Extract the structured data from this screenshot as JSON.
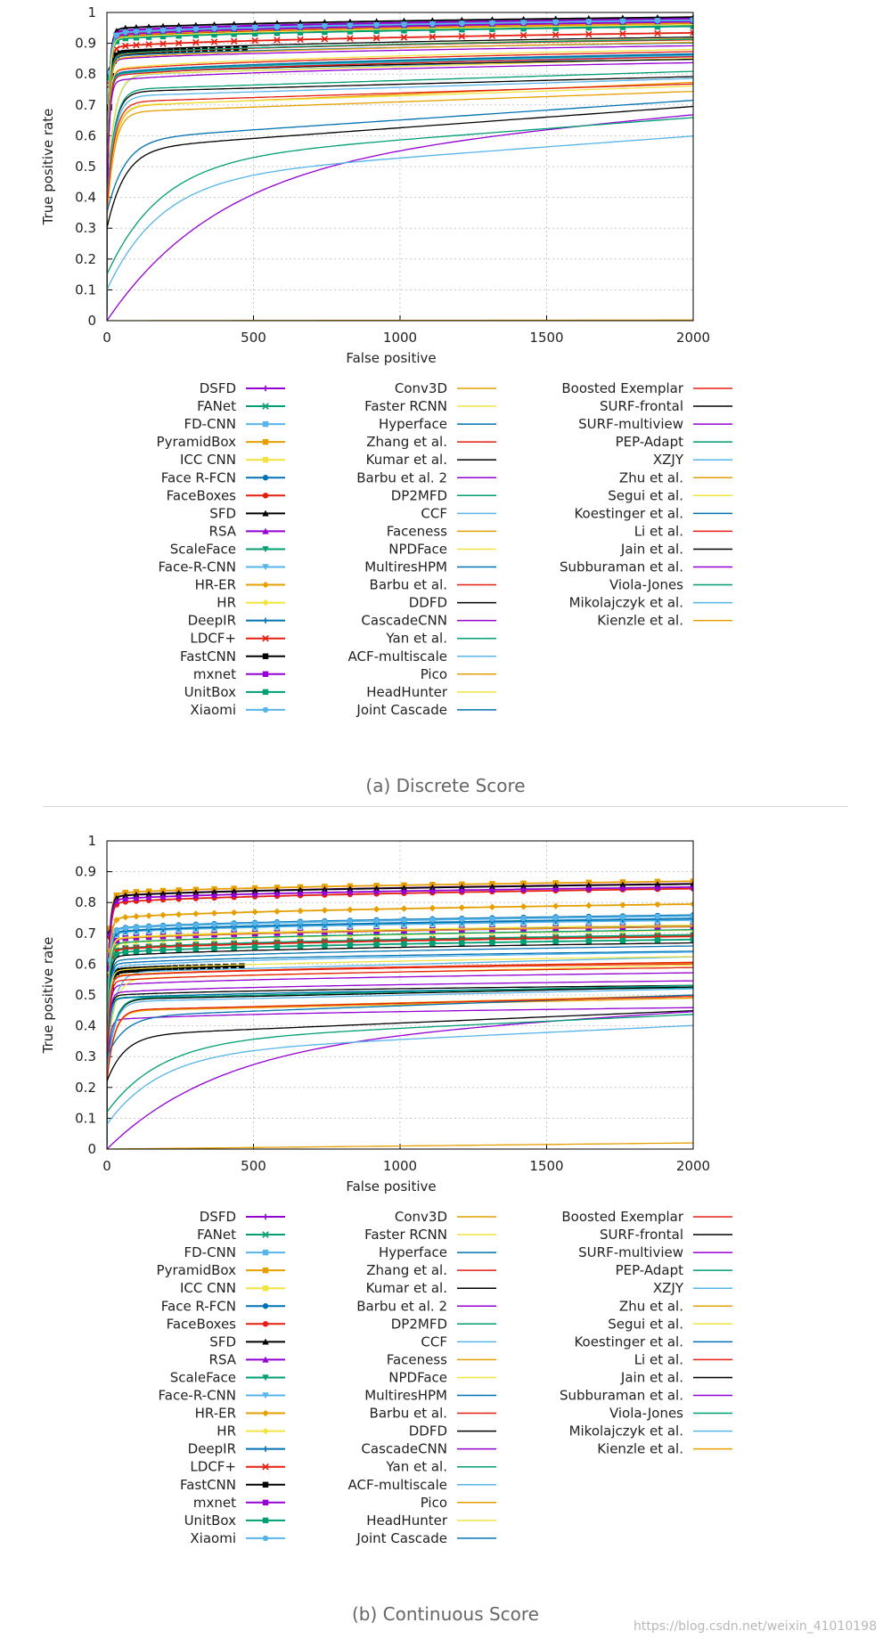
{
  "chart_data": [
    {
      "type": "line",
      "panel": "a",
      "caption": "(a) Discrete Score",
      "xlabel": "False positive",
      "ylabel": "True positive rate",
      "xlim": [
        0,
        2000
      ],
      "ylim": [
        0,
        1
      ],
      "xticks": [
        "0",
        "500",
        "1000",
        "1500",
        "2000"
      ],
      "yticks": [
        "0",
        "0.1",
        "0.2",
        "0.3",
        "0.4",
        "0.5",
        "0.6",
        "0.7",
        "0.8",
        "0.9",
        "1"
      ],
      "grid": true,
      "series": [
        {
          "name": "DSFD",
          "color": "#9400d3",
          "marker": "plus",
          "final": 0.98,
          "start": 0.88
        },
        {
          "name": "FANet",
          "color": "#009e73",
          "marker": "x",
          "final": 0.97,
          "start": 0.87
        },
        {
          "name": "FD-CNN",
          "color": "#56b4e9",
          "marker": "square",
          "final": 0.965,
          "start": 0.86
        },
        {
          "name": "PyramidBox",
          "color": "#e69f00",
          "marker": "square",
          "final": 0.972,
          "start": 0.87
        },
        {
          "name": "ICC CNN",
          "color": "#f0e442",
          "marker": "square",
          "final": 0.962,
          "start": 0.86
        },
        {
          "name": "Face R-FCN",
          "color": "#0072b2",
          "marker": "circle",
          "final": 0.975,
          "start": 0.87
        },
        {
          "name": "FaceBoxes",
          "color": "#e51e10",
          "marker": "circle",
          "final": 0.962,
          "start": 0.86
        },
        {
          "name": "SFD",
          "color": "#000000",
          "marker": "triangle",
          "final": 0.985,
          "start": 0.89
        },
        {
          "name": "RSA",
          "color": "#9400d3",
          "marker": "triangle",
          "final": 0.976,
          "start": 0.88
        },
        {
          "name": "ScaleFace",
          "color": "#009e73",
          "marker": "triangle-down",
          "final": 0.956,
          "start": 0.85
        },
        {
          "name": "Face-R-CNN",
          "color": "#56b4e9",
          "marker": "triangle-down",
          "final": 0.974,
          "start": 0.87
        },
        {
          "name": "HR-ER",
          "color": "#e69f00",
          "marker": "diamond",
          "final": 0.966,
          "start": 0.86
        },
        {
          "name": "HR",
          "color": "#f0e442",
          "marker": "diamond",
          "final": 0.972,
          "start": 0.86
        },
        {
          "name": "DeepIR",
          "color": "#0072b2",
          "marker": "plus",
          "final": 0.974,
          "start": 0.87
        },
        {
          "name": "LDCF+",
          "color": "#e51e10",
          "marker": "x",
          "final": 0.934,
          "start": 0.82
        },
        {
          "name": "FastCNN",
          "color": "#000000",
          "marker": "square",
          "final": 0.905,
          "start": 0.81,
          "x_end": 470
        },
        {
          "name": "mxnet",
          "color": "#9400d3",
          "marker": "square",
          "final": 0.97,
          "start": 0.86
        },
        {
          "name": "UnitBox",
          "color": "#009e73",
          "marker": "square",
          "final": 0.955,
          "start": 0.85
        },
        {
          "name": "Xiaomi",
          "color": "#56b4e9",
          "marker": "circle",
          "final": 0.975,
          "start": 0.87
        },
        {
          "name": "Conv3D",
          "color": "#e69f00",
          "marker": "none",
          "final": 0.915,
          "start": 0.78
        },
        {
          "name": "Faster RCNN",
          "color": "#f0e442",
          "marker": "none",
          "final": 0.961,
          "start": 0.85
        },
        {
          "name": "Hyperface",
          "color": "#0072b2",
          "marker": "none",
          "final": 0.901,
          "start": 0.79
        },
        {
          "name": "Zhang et al.",
          "color": "#e51e10",
          "marker": "none",
          "final": 0.911,
          "start": 0.79
        },
        {
          "name": "Kumar et al.",
          "color": "#000000",
          "marker": "none",
          "final": 0.92,
          "start": 0.8
        },
        {
          "name": "Barbu et al. 2",
          "color": "#9400d3",
          "marker": "none",
          "final": 0.892,
          "start": 0.78
        },
        {
          "name": "DP2MFD",
          "color": "#009e73",
          "marker": "none",
          "final": 0.913,
          "start": 0.79
        },
        {
          "name": "CCF",
          "color": "#56b4e9",
          "marker": "none",
          "final": 0.859,
          "start": 0.68,
          "shape": "medium"
        },
        {
          "name": "Faceness",
          "color": "#e69f00",
          "marker": "none",
          "final": 0.903,
          "start": 0.77
        },
        {
          "name": "NPDFace",
          "color": "#f0e442",
          "marker": "none",
          "final": 0.851,
          "start": 0.7,
          "shape": "medium"
        },
        {
          "name": "MultiresHPM",
          "color": "#0072b2",
          "marker": "none",
          "final": 0.864,
          "start": 0.7
        },
        {
          "name": "Barbu et al.",
          "color": "#e51e10",
          "marker": "none",
          "final": 0.873,
          "start": 0.72
        },
        {
          "name": "DDFD",
          "color": "#000000",
          "marker": "none",
          "final": 0.848,
          "start": 0.72
        },
        {
          "name": "CascadeCNN",
          "color": "#9400d3",
          "marker": "none",
          "final": 0.857,
          "start": 0.7
        },
        {
          "name": "Yan et al.",
          "color": "#009e73",
          "marker": "none",
          "final": 0.861,
          "start": 0.71
        },
        {
          "name": "ACF-multiscale",
          "color": "#56b4e9",
          "marker": "none",
          "final": 0.86,
          "start": 0.7
        },
        {
          "name": "Pico",
          "color": "#e69f00",
          "marker": "none",
          "final": 0.773,
          "start": 0.55,
          "shape": "medium"
        },
        {
          "name": "HeadHunter",
          "color": "#f0e442",
          "marker": "none",
          "final": 0.88,
          "start": 0.72
        },
        {
          "name": "Joint Cascade",
          "color": "#0072b2",
          "marker": "none",
          "final": 0.866,
          "start": 0.71
        },
        {
          "name": "Boosted Exemplar",
          "color": "#e51e10",
          "marker": "none",
          "final": 0.856,
          "start": 0.7
        },
        {
          "name": "SURF-frontal",
          "color": "#000000",
          "marker": "none",
          "final": 0.792,
          "start": 0.65,
          "shape": "medium"
        },
        {
          "name": "SURF-multiview",
          "color": "#9400d3",
          "marker": "none",
          "final": 0.837,
          "start": 0.69
        },
        {
          "name": "PEP-Adapt",
          "color": "#009e73",
          "marker": "none",
          "final": 0.809,
          "start": 0.64,
          "shape": "medium"
        },
        {
          "name": "XZJY",
          "color": "#56b4e9",
          "marker": "none",
          "final": 0.786,
          "start": 0.62,
          "shape": "medium"
        },
        {
          "name": "Zhu et al.",
          "color": "#e69f00",
          "marker": "none",
          "final": 0.744,
          "start": 0.55,
          "shape": "medium"
        },
        {
          "name": "Segui et al.",
          "color": "#f0e442",
          "marker": "none",
          "final": 0.761,
          "start": 0.58,
          "shape": "medium"
        },
        {
          "name": "Koestinger et al.",
          "color": "#0072b2",
          "marker": "none",
          "final": 0.715,
          "start": 0.35,
          "shape": "slow"
        },
        {
          "name": "Li et al.",
          "color": "#e51e10",
          "marker": "none",
          "final": 0.768,
          "start": 0.6,
          "shape": "medium"
        },
        {
          "name": "Jain et al.",
          "color": "#000000",
          "marker": "none",
          "final": 0.695,
          "start": 0.3,
          "shape": "slow"
        },
        {
          "name": "Subburaman et al.",
          "color": "#9400d3",
          "marker": "none",
          "final": 0.668,
          "start": 0.0,
          "shape": "veryslow"
        },
        {
          "name": "Viola-Jones",
          "color": "#009e73",
          "marker": "none",
          "final": 0.659,
          "start": 0.15,
          "shape": "slow2"
        },
        {
          "name": "Mikolajczyk et al.",
          "color": "#56b4e9",
          "marker": "none",
          "final": 0.599,
          "start": 0.1,
          "shape": "slow2"
        },
        {
          "name": "Kienzle et al.",
          "color": "#e69f00",
          "marker": "none",
          "final": 0.002,
          "start": 0.0,
          "shape": "flat"
        }
      ]
    },
    {
      "type": "line",
      "panel": "b",
      "caption": "(b) Continuous Score",
      "xlabel": "False positive",
      "ylabel": "True positive rate",
      "xlim": [
        0,
        2000
      ],
      "ylim": [
        0,
        1
      ],
      "xticks": [
        "0",
        "500",
        "1000",
        "1500",
        "2000"
      ],
      "yticks": [
        "0",
        "0.1",
        "0.2",
        "0.3",
        "0.4",
        "0.5",
        "0.6",
        "0.7",
        "0.8",
        "0.9",
        "1"
      ],
      "grid": true,
      "series": [
        {
          "name": "DSFD",
          "color": "#9400d3",
          "marker": "plus",
          "final": 0.861,
          "start": 0.76
        },
        {
          "name": "FANet",
          "color": "#009e73",
          "marker": "x",
          "final": 0.724,
          "start": 0.62
        },
        {
          "name": "FD-CNN",
          "color": "#56b4e9",
          "marker": "square",
          "final": 0.743,
          "start": 0.64
        },
        {
          "name": "PyramidBox",
          "color": "#e69f00",
          "marker": "square",
          "final": 0.869,
          "start": 0.77
        },
        {
          "name": "ICC CNN",
          "color": "#f0e442",
          "marker": "square",
          "final": 0.691,
          "start": 0.58
        },
        {
          "name": "Face R-FCN",
          "color": "#0072b2",
          "marker": "circle",
          "final": 0.759,
          "start": 0.65
        },
        {
          "name": "FaceBoxes",
          "color": "#e51e10",
          "marker": "circle",
          "final": 0.845,
          "start": 0.73
        },
        {
          "name": "SFD",
          "color": "#000000",
          "marker": "triangle",
          "final": 0.86,
          "start": 0.76
        },
        {
          "name": "RSA",
          "color": "#9400d3",
          "marker": "triangle",
          "final": 0.85,
          "start": 0.75
        },
        {
          "name": "ScaleFace",
          "color": "#009e73",
          "marker": "triangle-down",
          "final": 0.695,
          "start": 0.58
        },
        {
          "name": "Face-R-CNN",
          "color": "#56b4e9",
          "marker": "triangle-down",
          "final": 0.745,
          "start": 0.64
        },
        {
          "name": "HR-ER",
          "color": "#e69f00",
          "marker": "diamond",
          "final": 0.795,
          "start": 0.68
        },
        {
          "name": "HR",
          "color": "#f0e442",
          "marker": "diamond",
          "final": 0.711,
          "start": 0.6
        },
        {
          "name": "DeepIR",
          "color": "#0072b2",
          "marker": "plus",
          "final": 0.748,
          "start": 0.64
        },
        {
          "name": "LDCF+",
          "color": "#e51e10",
          "marker": "x",
          "final": 0.69,
          "start": 0.58
        },
        {
          "name": "FastCNN",
          "color": "#000000",
          "marker": "square",
          "final": 0.616,
          "start": 0.52,
          "x_end": 460
        },
        {
          "name": "mxnet",
          "color": "#9400d3",
          "marker": "square",
          "final": 0.722,
          "start": 0.62
        },
        {
          "name": "UnitBox",
          "color": "#009e73",
          "marker": "square",
          "final": 0.68,
          "start": 0.57
        },
        {
          "name": "Xiaomi",
          "color": "#56b4e9",
          "marker": "circle",
          "final": 0.756,
          "start": 0.65
        },
        {
          "name": "Conv3D",
          "color": "#e69f00",
          "marker": "none",
          "final": 0.722,
          "start": 0.62
        },
        {
          "name": "Faster RCNN",
          "color": "#f0e442",
          "marker": "none",
          "final": 0.727,
          "start": 0.62
        },
        {
          "name": "Hyperface",
          "color": "#0072b2",
          "marker": "none",
          "final": 0.642,
          "start": 0.54
        },
        {
          "name": "Zhang et al.",
          "color": "#e51e10",
          "marker": "none",
          "final": 0.601,
          "start": 0.5
        },
        {
          "name": "Kumar et al.",
          "color": "#000000",
          "marker": "none",
          "final": 0.669,
          "start": 0.56
        },
        {
          "name": "Barbu et al. 2",
          "color": "#9400d3",
          "marker": "none",
          "final": 0.572,
          "start": 0.47
        },
        {
          "name": "DP2MFD",
          "color": "#009e73",
          "marker": "none",
          "final": 0.712,
          "start": 0.6
        },
        {
          "name": "CCF",
          "color": "#56b4e9",
          "marker": "none",
          "final": 0.624,
          "start": 0.48,
          "shape": "medium"
        },
        {
          "name": "Faceness",
          "color": "#e69f00",
          "marker": "none",
          "final": 0.604,
          "start": 0.5
        },
        {
          "name": "NPDFace",
          "color": "#f0e442",
          "marker": "none",
          "final": 0.597,
          "start": 0.47,
          "shape": "medium"
        },
        {
          "name": "MultiresHPM",
          "color": "#0072b2",
          "marker": "none",
          "final": 0.659,
          "start": 0.54
        },
        {
          "name": "Barbu et al.",
          "color": "#e51e10",
          "marker": "none",
          "final": 0.589,
          "start": 0.48
        },
        {
          "name": "DDFD",
          "color": "#000000",
          "marker": "none",
          "final": 0.531,
          "start": 0.45
        },
        {
          "name": "CascadeCNN",
          "color": "#9400d3",
          "marker": "none",
          "final": 0.546,
          "start": 0.45
        },
        {
          "name": "Yan et al.",
          "color": "#009e73",
          "marker": "none",
          "final": 0.523,
          "start": 0.44
        },
        {
          "name": "ACF-multiscale",
          "color": "#56b4e9",
          "marker": "none",
          "final": 0.639,
          "start": 0.52
        },
        {
          "name": "Pico",
          "color": "#e69f00",
          "marker": "none",
          "final": 0.499,
          "start": 0.36,
          "shape": "medium"
        },
        {
          "name": "HeadHunter",
          "color": "#f0e442",
          "marker": "none",
          "final": 0.625,
          "start": 0.51
        },
        {
          "name": "Joint Cascade",
          "color": "#0072b2",
          "marker": "none",
          "final": 0.526,
          "start": 0.43
        },
        {
          "name": "Boosted Exemplar",
          "color": "#e51e10",
          "marker": "none",
          "final": 0.606,
          "start": 0.49
        },
        {
          "name": "SURF-frontal",
          "color": "#000000",
          "marker": "none",
          "final": 0.526,
          "start": 0.41,
          "shape": "medium"
        },
        {
          "name": "SURF-multiview",
          "color": "#9400d3",
          "marker": "none",
          "final": 0.459,
          "start": 0.36
        },
        {
          "name": "PEP-Adapt",
          "color": "#009e73",
          "marker": "none",
          "final": 0.531,
          "start": 0.41,
          "shape": "medium"
        },
        {
          "name": "XZJY",
          "color": "#56b4e9",
          "marker": "none",
          "final": 0.52,
          "start": 0.4,
          "shape": "medium"
        },
        {
          "name": "Zhu et al.",
          "color": "#e69f00",
          "marker": "none",
          "final": 0.49,
          "start": 0.37,
          "shape": "medium"
        },
        {
          "name": "Segui et al.",
          "color": "#f0e442",
          "marker": "none",
          "final": 0.495,
          "start": 0.37,
          "shape": "medium"
        },
        {
          "name": "Koestinger et al.",
          "color": "#0072b2",
          "marker": "none",
          "final": 0.5,
          "start": 0.3,
          "shape": "slow"
        },
        {
          "name": "Li et al.",
          "color": "#e51e10",
          "marker": "none",
          "final": 0.495,
          "start": 0.37,
          "shape": "medium"
        },
        {
          "name": "Jain et al.",
          "color": "#000000",
          "marker": "none",
          "final": 0.449,
          "start": 0.22,
          "shape": "slow"
        },
        {
          "name": "Subburaman et al.",
          "color": "#9400d3",
          "marker": "none",
          "final": 0.446,
          "start": 0.0,
          "shape": "veryslow"
        },
        {
          "name": "Viola-Jones",
          "color": "#009e73",
          "marker": "none",
          "final": 0.437,
          "start": 0.12,
          "shape": "slow2"
        },
        {
          "name": "Mikolajczyk et al.",
          "color": "#56b4e9",
          "marker": "none",
          "final": 0.401,
          "start": 0.08,
          "shape": "slow2"
        },
        {
          "name": "Kienzle et al.",
          "color": "#e69f00",
          "marker": "none",
          "final": 0.02,
          "start": 0.0,
          "shape": "flat"
        }
      ]
    }
  ],
  "watermark": "https://blog.csdn.net/weixin_41010198"
}
